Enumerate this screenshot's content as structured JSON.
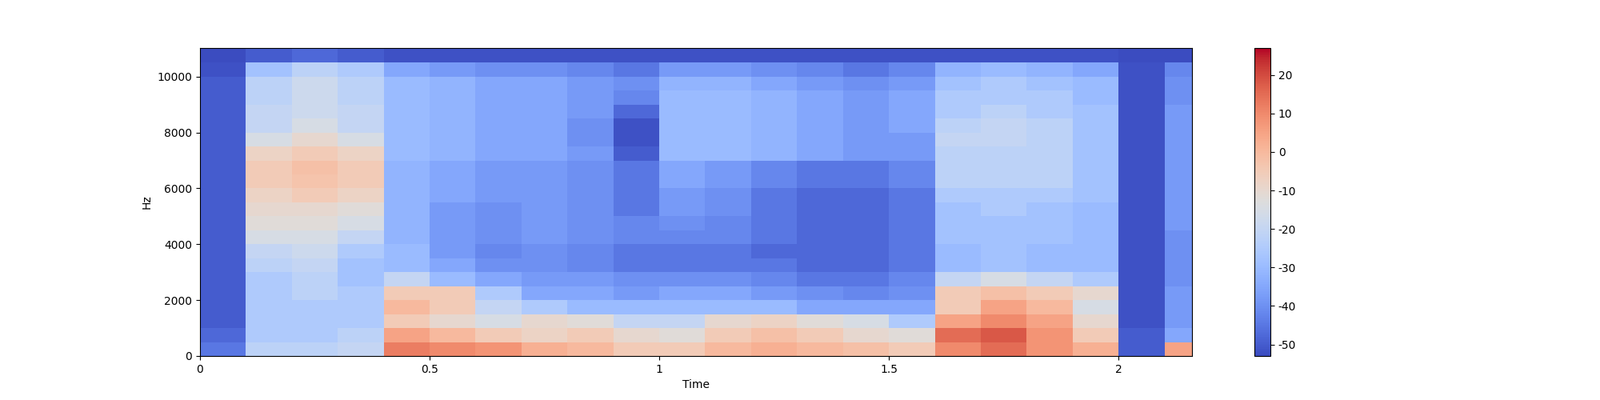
{
  "chart_data": {
    "type": "heatmap",
    "x_label": "Time",
    "y_label": "Hz",
    "color": "coolwarm",
    "x_edges": [
      0,
      0.1,
      0.2,
      0.3,
      0.4,
      0.5,
      0.6,
      0.7,
      0.8,
      0.9,
      1.0,
      1.1,
      1.2,
      1.3,
      1.4,
      1.5,
      1.6,
      1.7,
      1.8,
      1.9,
      2.0,
      2.1,
      2.2
    ],
    "y_edges": [
      0,
      500,
      1000,
      1500,
      2000,
      2500,
      3000,
      3500,
      4000,
      4500,
      5000,
      5500,
      6000,
      6500,
      7000,
      7500,
      8000,
      8500,
      9000,
      9500,
      10000,
      10500,
      11025
    ],
    "xlim": [
      0,
      2.16
    ],
    "xticks": [
      0,
      0.5,
      1,
      1.5,
      2
    ],
    "ylim": [
      0,
      11025
    ],
    "yticks": [
      0,
      2000,
      4000,
      6000,
      8000,
      10000
    ],
    "colorbar_lim": [
      -53,
      27
    ],
    "colorbar_ticks": [
      -50,
      -40,
      -30,
      -20,
      -10,
      0,
      10,
      20
    ],
    "cells": [
      [
        -45,
        -22,
        -22,
        -20,
        12,
        10,
        8,
        2,
        0,
        -5,
        -5,
        0,
        2,
        0,
        -2,
        -5,
        10,
        15,
        8,
        2,
        -50,
        5
      ],
      [
        -48,
        -25,
        -25,
        -22,
        5,
        0,
        -5,
        -8,
        -5,
        -10,
        -12,
        -5,
        -2,
        -5,
        -10,
        -12,
        15,
        18,
        8,
        -5,
        -50,
        -35
      ],
      [
        -50,
        -25,
        -25,
        -25,
        -5,
        -10,
        -15,
        -10,
        -12,
        -20,
        -20,
        -10,
        -8,
        -12,
        -15,
        -25,
        5,
        10,
        5,
        -10,
        -52,
        -38
      ],
      [
        -50,
        -25,
        -25,
        -25,
        0,
        -5,
        -20,
        -25,
        -30,
        -30,
        -30,
        -30,
        -30,
        -35,
        -35,
        -35,
        -5,
        5,
        0,
        -15,
        -52,
        -38
      ],
      [
        -50,
        -25,
        -22,
        -25,
        -5,
        -5,
        -25,
        -35,
        -35,
        -38,
        -35,
        -35,
        -38,
        -40,
        -42,
        -40,
        -5,
        -2,
        -5,
        -10,
        -52,
        -38
      ],
      [
        -50,
        -25,
        -22,
        -28,
        -20,
        -30,
        -35,
        -38,
        -38,
        -40,
        -40,
        -40,
        -42,
        -45,
        -45,
        -42,
        -20,
        -15,
        -20,
        -25,
        -52,
        -40
      ],
      [
        -50,
        -22,
        -20,
        -28,
        -30,
        -35,
        -40,
        -40,
        -42,
        -45,
        -45,
        -45,
        -45,
        -48,
        -48,
        -45,
        -30,
        -28,
        -30,
        -30,
        -52,
        -40
      ],
      [
        -50,
        -20,
        -18,
        -25,
        -30,
        -38,
        -42,
        -40,
        -42,
        -45,
        -45,
        -45,
        -48,
        -48,
        -48,
        -45,
        -30,
        -28,
        -30,
        -30,
        -52,
        -40
      ],
      [
        -50,
        -15,
        -15,
        -20,
        -32,
        -38,
        -40,
        -38,
        -40,
        -42,
        -42,
        -42,
        -45,
        -48,
        -48,
        -45,
        -28,
        -28,
        -28,
        -30,
        -52,
        -40
      ],
      [
        -50,
        -12,
        -12,
        -15,
        -32,
        -38,
        -40,
        -38,
        -40,
        -42,
        -40,
        -42,
        -45,
        -48,
        -48,
        -45,
        -28,
        -28,
        -28,
        -30,
        -52,
        -38
      ],
      [
        -50,
        -10,
        -10,
        -12,
        -32,
        -38,
        -40,
        -38,
        -40,
        -45,
        -38,
        -40,
        -45,
        -48,
        -48,
        -45,
        -28,
        -25,
        -28,
        -30,
        -52,
        -38
      ],
      [
        -50,
        -8,
        -5,
        -8,
        -32,
        -35,
        -38,
        -38,
        -40,
        -45,
        -38,
        -40,
        -45,
        -48,
        -48,
        -45,
        -25,
        -25,
        -25,
        -28,
        -52,
        -38
      ],
      [
        -50,
        -5,
        -3,
        -5,
        -32,
        -35,
        -38,
        -38,
        -40,
        -45,
        -35,
        -38,
        -42,
        -45,
        -45,
        -42,
        -22,
        -22,
        -22,
        -28,
        -52,
        -38
      ],
      [
        -50,
        -5,
        -2,
        -5,
        -32,
        -35,
        -38,
        -38,
        -40,
        -45,
        -35,
        -38,
        -42,
        -45,
        -45,
        -42,
        -22,
        -22,
        -22,
        -28,
        -52,
        -38
      ],
      [
        -50,
        -8,
        -5,
        -8,
        -30,
        -32,
        -35,
        -35,
        -38,
        -50,
        -30,
        -30,
        -32,
        -35,
        -38,
        -38,
        -22,
        -22,
        -22,
        -28,
        -52,
        -38
      ],
      [
        -50,
        -15,
        -10,
        -15,
        -30,
        -32,
        -35,
        -35,
        -40,
        -52,
        -30,
        -30,
        -32,
        -35,
        -38,
        -38,
        -20,
        -20,
        -22,
        -28,
        -52,
        -38
      ],
      [
        -50,
        -20,
        -15,
        -20,
        -30,
        -32,
        -35,
        -35,
        -40,
        -52,
        -30,
        -30,
        -32,
        -35,
        -38,
        -35,
        -22,
        -20,
        -22,
        -28,
        -52,
        -38
      ],
      [
        -50,
        -20,
        -18,
        -20,
        -30,
        -32,
        -35,
        -35,
        -38,
        -48,
        -30,
        -30,
        -32,
        -35,
        -38,
        -35,
        -25,
        -22,
        -25,
        -28,
        -52,
        -38
      ],
      [
        -50,
        -22,
        -18,
        -22,
        -30,
        -32,
        -35,
        -35,
        -38,
        -42,
        -30,
        -30,
        -32,
        -35,
        -38,
        -35,
        -25,
        -25,
        -25,
        -30,
        -52,
        -40
      ],
      [
        -50,
        -22,
        -18,
        -22,
        -30,
        -32,
        -35,
        -35,
        -38,
        -40,
        -32,
        -32,
        -35,
        -38,
        -40,
        -38,
        -28,
        -25,
        -28,
        -30,
        -52,
        -40
      ],
      [
        -52,
        -28,
        -22,
        -25,
        -35,
        -38,
        -40,
        -40,
        -42,
        -45,
        -38,
        -38,
        -40,
        -42,
        -45,
        -42,
        -32,
        -30,
        -32,
        -35,
        -52,
        -42
      ],
      [
        -53,
        -50,
        -48,
        -50,
        -52,
        -52,
        -52,
        -52,
        -52,
        -52,
        -52,
        -52,
        -52,
        -52,
        -52,
        -52,
        -52,
        -52,
        -52,
        -52,
        -53,
        -53
      ]
    ]
  }
}
